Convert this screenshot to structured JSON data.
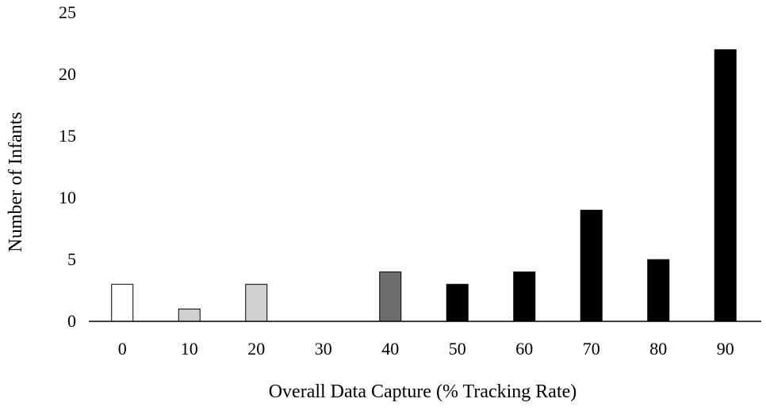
{
  "chart_data": {
    "type": "bar",
    "title": "",
    "xlabel": "Overall Data Capture (% Tracking Rate)",
    "ylabel": "Number of Infants",
    "categories": [
      "0",
      "10",
      "20",
      "30",
      "40",
      "50",
      "60",
      "70",
      "80",
      "90"
    ],
    "values": [
      3,
      1,
      3,
      0,
      4,
      3,
      4,
      9,
      5,
      22
    ],
    "bar_colors": [
      "#ffffff",
      "#d0d0d0",
      "#d0d0d0",
      "#d0d0d0",
      "#6e6e6e",
      "#000000",
      "#000000",
      "#000000",
      "#000000",
      "#000000"
    ],
    "bar_edge_color": "#000000",
    "ylim": [
      0,
      25
    ],
    "yticks": [
      0,
      5,
      10,
      15,
      20,
      25
    ],
    "grid": false,
    "legend": "none"
  }
}
